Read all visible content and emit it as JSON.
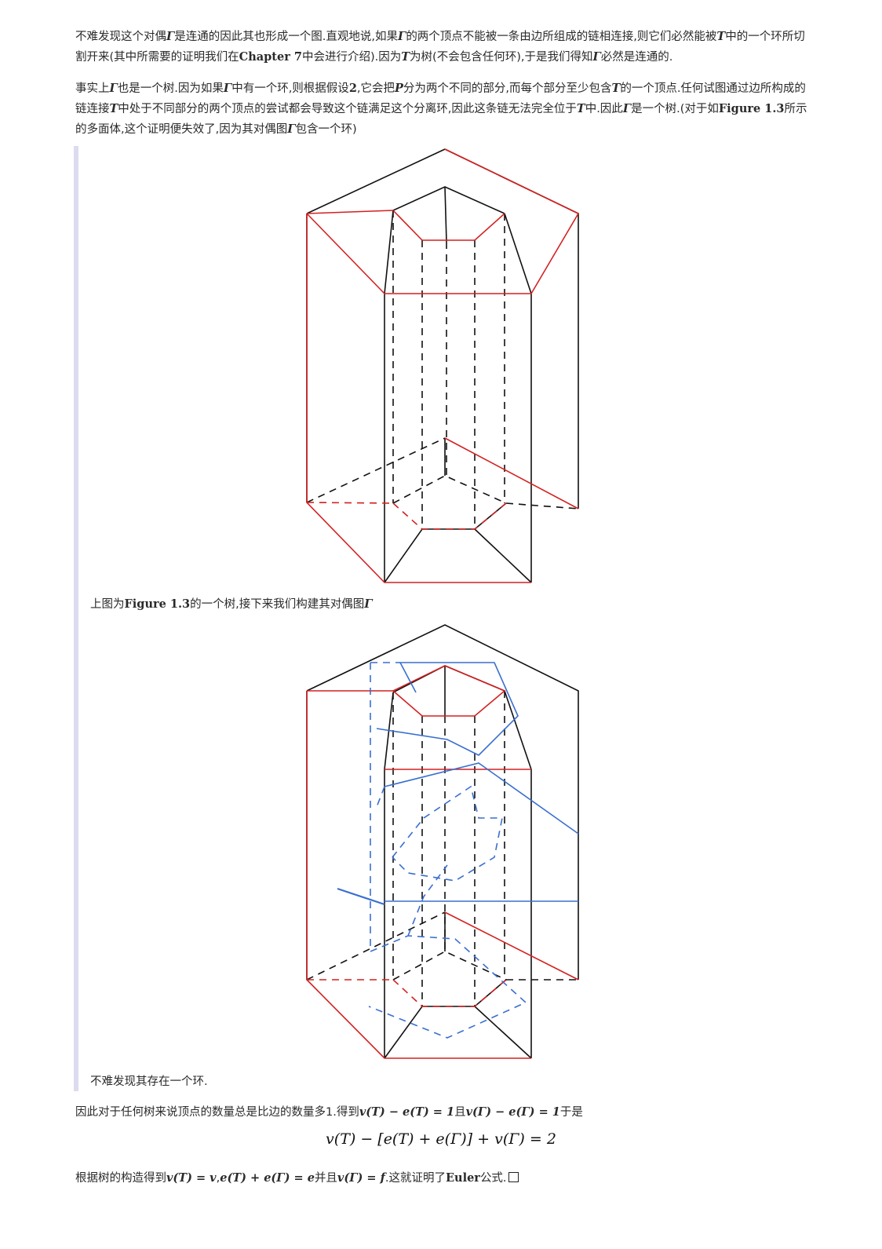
{
  "paragraphs": {
    "p1": {
      "s1": "不难发现这个对偶",
      "m1": "Γ",
      "s2": "是连通的因此其也形成一个图.直观地说,如果",
      "m2": "Γ",
      "s3": "的两个顶点不能被一条由边所组成的链相连接,则它们必然能被",
      "m3": "T",
      "s4": "中的一个环所切割开来(其中所需要的证明我们在",
      "b1": "Chapter 7",
      "s5": "中会进行介绍).因为",
      "m4": "T",
      "s6": "为树(不会包含任何环),于是我们得知",
      "m5": "Γ",
      "s7": "必然是连通的."
    },
    "p2": {
      "s1": "事实上",
      "m1": "Γ",
      "s2": "也是一个树.因为如果",
      "m2": "Γ",
      "s3": "中有一个环,则根据假设",
      "b1": "2",
      "s4": ",它会把",
      "m3": "P",
      "s5": "分为两个不同的部分,而每个部分至少包含",
      "m4": "T",
      "s6": "的一个顶点.任何试图通过边所构成的链连接",
      "m5": "T",
      "s7": "中处于不同部分的两个顶点的尝试都会导致这个链满足这个分离环,因此这条链无法完全位于",
      "m6": "T",
      "s8": "中.因此",
      "m7": "Γ",
      "s9": "是一个树.(对于如",
      "b2": "Figure 1.3",
      "s10": "所示的多面体,这个证明便失效了,因为其对偶图",
      "m8": "Γ",
      "s11": "包含一个环)"
    },
    "p3": {
      "s1": "因此对于任何树来说顶点的数量总是比边的数量多1.得到",
      "m1": "v(T) − e(T) = 1",
      "s2": "且",
      "m2": "v(Γ) − e(Γ) = 1",
      "s3": "于是"
    },
    "p4": {
      "s1": "根据树的构造得到",
      "m1": "v(T) = v",
      "s2": ",",
      "m2": "e(T) + e(Γ) = e",
      "s3": "并且",
      "m3": "v(Γ) = f",
      "s4": ".这就证明了",
      "b1": "Euler",
      "s5": "公式."
    }
  },
  "captions": {
    "c1": {
      "s1": "上图为",
      "b1": "Figure 1.3",
      "s2": "的一个树,接下来我们构建其对偶图",
      "m1": "Γ"
    },
    "c2": {
      "s1": "不难发现其存在一个环."
    }
  },
  "formula": "v(T) − [e(T) + e(Γ)] + v(Γ) = 2",
  "colors": {
    "tree_edge": "#d42020",
    "dual_edge": "#3a6fd0",
    "base_edge": "#111111"
  }
}
